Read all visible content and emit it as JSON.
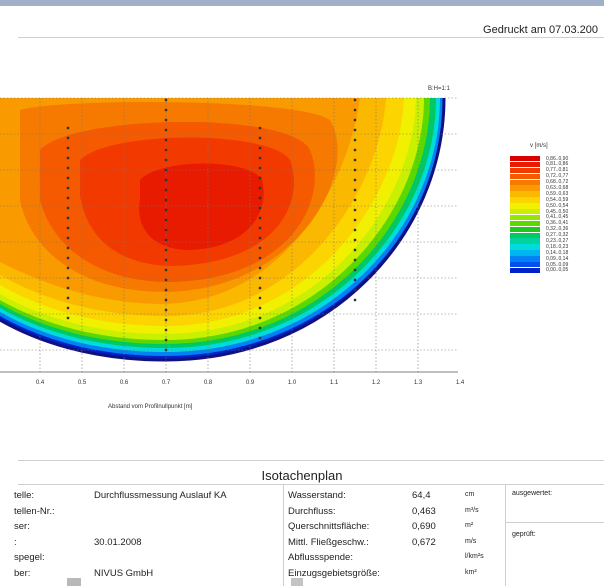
{
  "header": {
    "printed_label": "Gedruckt am 07.03.200"
  },
  "plot": {
    "scale_note": "B:H=1:1",
    "legend_title": "v [m/s]",
    "legend": [
      {
        "label": "0,86..0,90",
        "color": "#d90000"
      },
      {
        "label": "0,81..0,86",
        "color": "#e81a00"
      },
      {
        "label": "0,77..0,81",
        "color": "#f23a00"
      },
      {
        "label": "0,72..0,77",
        "color": "#f55a00"
      },
      {
        "label": "0,68..0,72",
        "color": "#f77a00"
      },
      {
        "label": "0,63..0,68",
        "color": "#f99a00"
      },
      {
        "label": "0,59..0,63",
        "color": "#fbb800"
      },
      {
        "label": "0,54..0,59",
        "color": "#fcd400"
      },
      {
        "label": "0,50..0,54",
        "color": "#f0f000"
      },
      {
        "label": "0,45..0,50",
        "color": "#c8f000"
      },
      {
        "label": "0,41..0,45",
        "color": "#96e600"
      },
      {
        "label": "0,36..0,41",
        "color": "#5ad800"
      },
      {
        "label": "0,32..0,36",
        "color": "#1ec81e"
      },
      {
        "label": "0,27..0,32",
        "color": "#00c864"
      },
      {
        "label": "0,23..0,27",
        "color": "#00d2a0"
      },
      {
        "label": "0,18..0,23",
        "color": "#00dcdc"
      },
      {
        "label": "0,14..0,18",
        "color": "#00b4f0"
      },
      {
        "label": "0,09..0,14",
        "color": "#0082f5"
      },
      {
        "label": "0,05..0,09",
        "color": "#0050f0"
      },
      {
        "label": "0,00..0,05",
        "color": "#0020c8"
      }
    ],
    "x_ticks": [
      "0.4",
      "0.5",
      "0.6",
      "0.7",
      "0.8",
      "0.9",
      "1.0",
      "1.1",
      "1.2",
      "1.3",
      "1.4"
    ],
    "x_axis_label": "Abstand vom Profilnullpunkt [m]"
  },
  "title": "Isotachenplan",
  "info_left": [
    {
      "label": "telle:",
      "value": "Durchflussmessung Auslauf KA"
    },
    {
      "label": "tellen-Nr.:",
      "value": ""
    },
    {
      "label": "ser:",
      "value": ""
    },
    {
      "label": ":",
      "value": "30.01.2008"
    },
    {
      "label": "spegel:",
      "value": ""
    },
    {
      "label": "ber:",
      "value": "NIVUS GmbH"
    }
  ],
  "info_mid": [
    {
      "label": "Wasserstand:",
      "value": "64,4",
      "unit": "cm"
    },
    {
      "label": "Durchfluss:",
      "value": "0,463",
      "unit": "m³/s"
    },
    {
      "label": "Querschnittsfläche:",
      "value": "0,690",
      "unit": "m²"
    },
    {
      "label": "Mittl. Fließgeschw.:",
      "value": "0,672",
      "unit": "m/s"
    },
    {
      "label": "Abflussspende:",
      "value": "",
      "unit": "l/km²s"
    },
    {
      "label": "Einzugsgebietsgröße:",
      "value": "",
      "unit": "km²"
    }
  ],
  "info_right": {
    "evaluated_label": "ausgewertet:",
    "checked_label": "geprüft:"
  }
}
